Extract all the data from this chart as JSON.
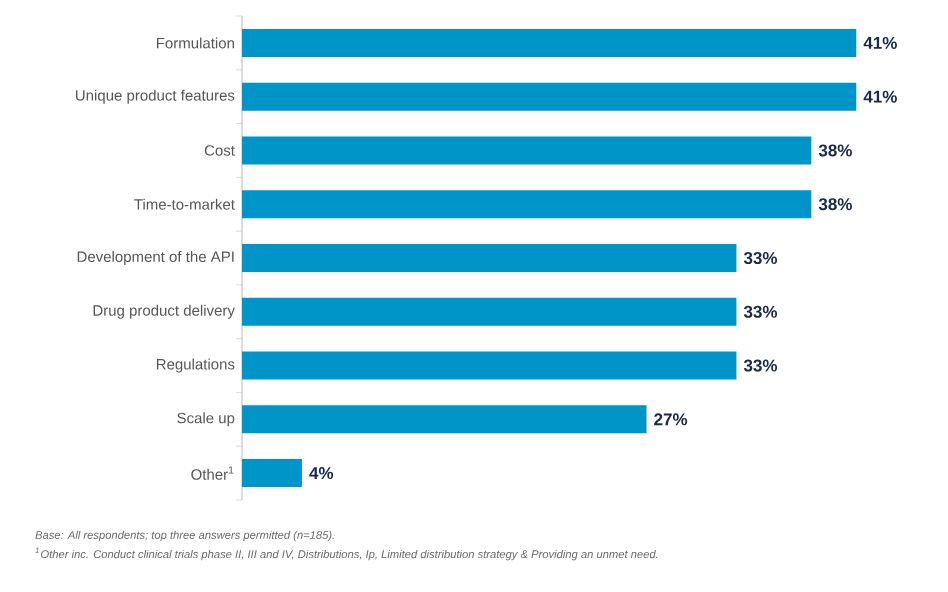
{
  "chart_data": {
    "type": "bar",
    "orientation": "horizontal",
    "categories": [
      "Formulation",
      "Unique product features",
      "Cost",
      "Time-to-market",
      "Development of the API",
      "Drug product delivery",
      "Regulations",
      "Scale up",
      "Other$^{1}$"
    ],
    "values": [
      41,
      41,
      38,
      38,
      33,
      33,
      33,
      27,
      4
    ],
    "value_labels": [
      "41%",
      "41%",
      "38%",
      "38%",
      "33%",
      "33%",
      "33%",
      "27%",
      "4%"
    ],
    "color": "#0095c8",
    "annotations": [
      "Base: All respondents; top three answers permitted (n=185).",
      "$^{1}$Other inc. Conduct clinical trials phase II, III and IV, Distributions, Ip, Limited distribution strategy & Providing an unmet need."
    ]
  }
}
